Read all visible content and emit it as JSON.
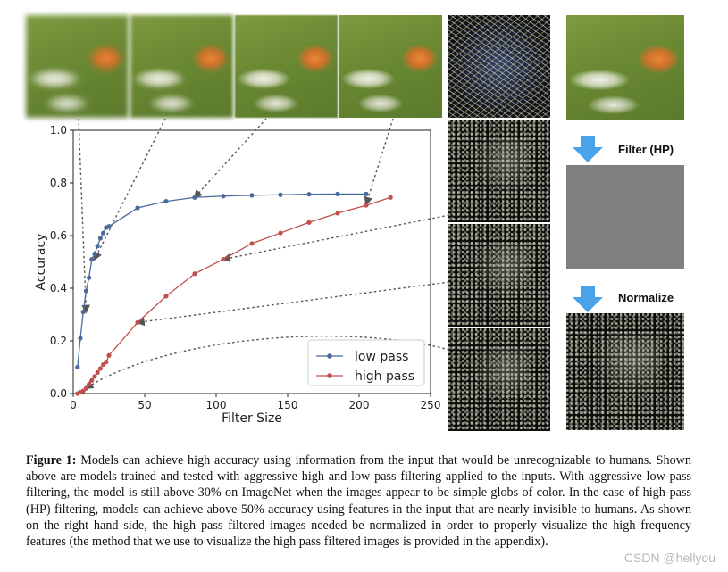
{
  "figure": {
    "right_panel": {
      "filter_label": "Filter (HP)",
      "normalize_label": "Normalize"
    },
    "legend": {
      "low_pass": "low pass",
      "high_pass": "high pass"
    },
    "caption": {
      "label": "Figure 1:",
      "text": "Models can achieve high accuracy using information from the input that would be unrecognizable to humans. Shown above are models trained and tested with aggressive high and low pass filtering applied to the inputs. With aggressive low-pass filtering, the model is still above 30% on ImageNet when the images appear to be simple globs of color. In the case of high-pass (HP) filtering, models can achieve above 50% accuracy using features in the input that are nearly invisible to humans. As shown on the right hand side, the high pass filtered images needed be normalized in order to properly visualize the high frequency features (the method that we use to visualize the high pass filtered images is provided in the appendix)."
    },
    "watermark": "CSDN @hellyou",
    "colors": {
      "low_pass": "#4a6a9c",
      "high_pass": "#c0504d"
    }
  },
  "chart_data": {
    "type": "line",
    "xlabel": "Filter Size",
    "ylabel": "Accuracy",
    "xlim": [
      0,
      250
    ],
    "ylim": [
      0,
      1.0
    ],
    "x_ticks": [
      "0",
      "50",
      "100",
      "150",
      "200",
      "250"
    ],
    "y_ticks": [
      "0.0",
      "0.2",
      "0.4",
      "0.6",
      "0.8",
      "1.0"
    ],
    "grid": false,
    "legend_position": "bottom-right",
    "series": [
      {
        "name": "low pass",
        "color": "#4a6a9c",
        "points": [
          [
            3,
            0.1
          ],
          [
            5,
            0.21
          ],
          [
            7,
            0.31
          ],
          [
            9,
            0.39
          ],
          [
            11,
            0.44
          ],
          [
            13,
            0.51
          ],
          [
            15,
            0.53
          ],
          [
            17,
            0.56
          ],
          [
            19,
            0.59
          ],
          [
            21,
            0.61
          ],
          [
            23,
            0.63
          ],
          [
            25,
            0.635
          ],
          [
            45,
            0.705
          ],
          [
            65,
            0.73
          ],
          [
            85,
            0.745
          ],
          [
            105,
            0.75
          ],
          [
            125,
            0.753
          ],
          [
            145,
            0.755
          ],
          [
            165,
            0.757
          ],
          [
            185,
            0.758
          ],
          [
            205,
            0.758
          ]
        ]
      },
      {
        "name": "high pass",
        "color": "#c0504d",
        "points": [
          [
            3,
            0.0
          ],
          [
            5,
            0.005
          ],
          [
            7,
            0.01
          ],
          [
            9,
            0.02
          ],
          [
            11,
            0.035
          ],
          [
            13,
            0.05
          ],
          [
            15,
            0.065
          ],
          [
            17,
            0.08
          ],
          [
            19,
            0.095
          ],
          [
            21,
            0.11
          ],
          [
            23,
            0.12
          ],
          [
            25,
            0.145
          ],
          [
            45,
            0.27
          ],
          [
            65,
            0.37
          ],
          [
            85,
            0.455
          ],
          [
            105,
            0.51
          ],
          [
            125,
            0.57
          ],
          [
            145,
            0.61
          ],
          [
            165,
            0.65
          ],
          [
            185,
            0.685
          ],
          [
            205,
            0.715
          ],
          [
            222,
            0.745
          ]
        ]
      }
    ]
  }
}
